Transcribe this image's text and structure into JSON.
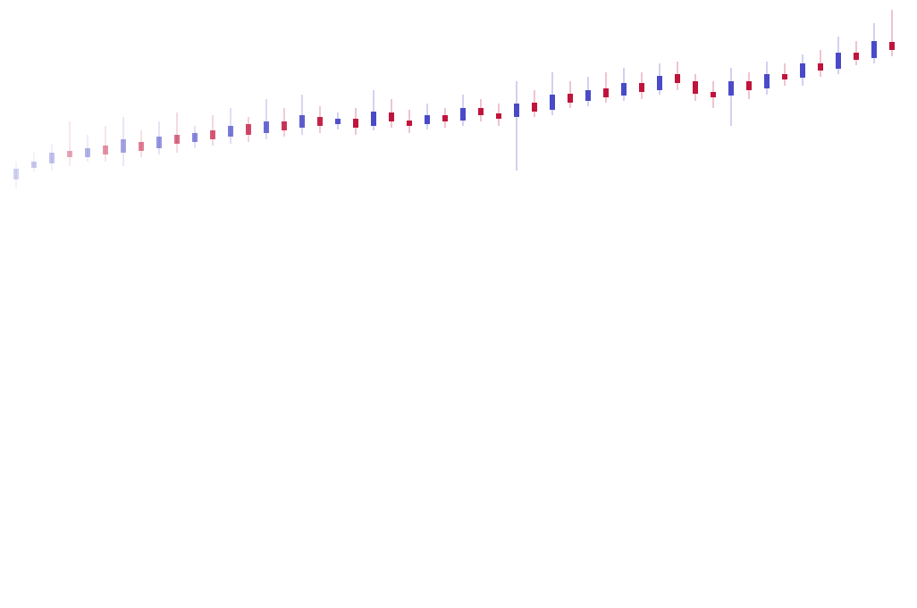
{
  "chart_data": {
    "type": "candlestick",
    "open": [
      480,
      493,
      498,
      512,
      505,
      518,
      510,
      522,
      515,
      530,
      522,
      535,
      528,
      542,
      532,
      545,
      538,
      550,
      542,
      548,
      540,
      555,
      546,
      542,
      552,
      546,
      560,
      554,
      550,
      566,
      558,
      576,
      568,
      582,
      574,
      588,
      580,
      598,
      590,
      578,
      574,
      590,
      582,
      598,
      594,
      610,
      604,
      622,
      616,
      634
    ],
    "high": [
      500,
      510,
      520,
      545,
      530,
      540,
      550,
      535,
      545,
      555,
      540,
      552,
      560,
      550,
      570,
      560,
      575,
      562,
      555,
      560,
      580,
      570,
      558,
      565,
      560,
      575,
      570,
      565,
      590,
      580,
      600,
      590,
      595,
      600,
      605,
      600,
      610,
      612,
      598,
      590,
      605,
      600,
      612,
      610,
      620,
      625,
      640,
      635,
      655,
      670
    ],
    "low": [
      470,
      488,
      490,
      495,
      500,
      500,
      495,
      505,
      508,
      510,
      515,
      518,
      520,
      522,
      525,
      528,
      530,
      532,
      536,
      530,
      535,
      538,
      532,
      536,
      538,
      540,
      545,
      540,
      490,
      550,
      552,
      560,
      562,
      566,
      568,
      570,
      575,
      580,
      568,
      560,
      540,
      570,
      575,
      585,
      585,
      595,
      598,
      608,
      610,
      618
    ],
    "close": [
      492,
      500,
      510,
      505,
      515,
      508,
      525,
      512,
      528,
      520,
      532,
      525,
      540,
      530,
      545,
      535,
      552,
      540,
      548,
      538,
      556,
      545,
      540,
      552,
      545,
      560,
      552,
      548,
      565,
      556,
      575,
      566,
      580,
      572,
      588,
      578,
      596,
      588,
      576,
      572,
      590,
      580,
      598,
      592,
      610,
      602,
      622,
      614,
      635,
      625
    ],
    "up_color": "#4a4ac8",
    "down_color": "#c0143c"
  }
}
